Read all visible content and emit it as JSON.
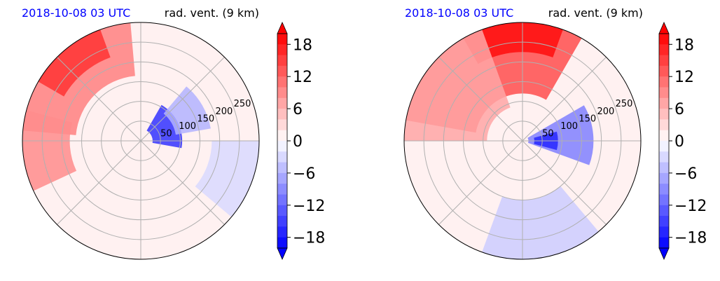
{
  "colors": {
    "date_label": "#0000ff",
    "grid": "#b0b0b0",
    "border": "#000000",
    "background_field": "#fff1f1"
  },
  "chart_data": [
    {
      "type": "heatmap",
      "projection": "polar",
      "date_label": "2018-10-08 03 UTC",
      "variable_label": "rad. vent. (9 km)",
      "range_rings": [
        50,
        100,
        150,
        200,
        250
      ],
      "range_ring_labels": [
        "50",
        "100",
        "150",
        "200",
        "250"
      ],
      "radial_spokes_deg": [
        0,
        45,
        90,
        135,
        180,
        225,
        270,
        315
      ],
      "colorbar": {
        "vmin": -20,
        "vmax": 20,
        "step": 2,
        "extend": "both",
        "ticks": [
          18,
          12,
          6,
          0,
          -6,
          -12,
          -18
        ],
        "tick_labels": [
          "18",
          "12",
          "6",
          "0",
          "−6",
          "−12",
          "−18"
        ],
        "colormap": "bwr"
      },
      "regions": [
        {
          "r_norm": [
            0.55,
            1.0
          ],
          "az_deg": [
            -175,
            -95
          ],
          "value": 10
        },
        {
          "r_norm": [
            0.75,
            1.0
          ],
          "az_deg": [
            -150,
            -110
          ],
          "value": 16
        },
        {
          "r_norm": [
            0.6,
            1.0
          ],
          "az_deg": [
            155,
            195
          ],
          "value": 9
        },
        {
          "r_norm": [
            0.1,
            0.35
          ],
          "az_deg": [
            -60,
            10
          ],
          "value": -16
        },
        {
          "r_norm": [
            0.3,
            0.6
          ],
          "az_deg": [
            -50,
            -10
          ],
          "value": -6
        },
        {
          "r_norm": [
            0.6,
            1.0
          ],
          "az_deg": [
            0,
            40
          ],
          "value": -3
        }
      ]
    },
    {
      "type": "heatmap",
      "projection": "polar",
      "date_label": "2018-10-08 03 UTC",
      "variable_label": "rad. vent. (9 km)",
      "range_rings": [
        50,
        100,
        150,
        200,
        250
      ],
      "range_ring_labels": [
        "50",
        "100",
        "150",
        "200",
        "250"
      ],
      "radial_spokes_deg": [
        0,
        45,
        90,
        135,
        180,
        225,
        270,
        315
      ],
      "colorbar": {
        "vmin": -20,
        "vmax": 20,
        "step": 2,
        "extend": "both",
        "ticks": [
          18,
          12,
          6,
          0,
          -6,
          -12,
          -18
        ],
        "tick_labels": [
          "18",
          "12",
          "6",
          "0",
          "−6",
          "−12",
          "−18"
        ],
        "colormap": "bwr"
      },
      "regions": [
        {
          "r_norm": [
            0.4,
            1.0
          ],
          "az_deg": [
            -170,
            -60
          ],
          "value": 14
        },
        {
          "r_norm": [
            0.75,
            1.0
          ],
          "az_deg": [
            -120,
            -70
          ],
          "value": 19
        },
        {
          "r_norm": [
            0.3,
            1.0
          ],
          "az_deg": [
            180,
            250
          ],
          "value": 7
        },
        {
          "r_norm": [
            0.05,
            0.6
          ],
          "az_deg": [
            -30,
            20
          ],
          "value": -10
        },
        {
          "r_norm": [
            0.1,
            0.3
          ],
          "az_deg": [
            -15,
            15
          ],
          "value": -17
        },
        {
          "r_norm": [
            0.5,
            1.0
          ],
          "az_deg": [
            50,
            110
          ],
          "value": -4
        }
      ]
    }
  ]
}
